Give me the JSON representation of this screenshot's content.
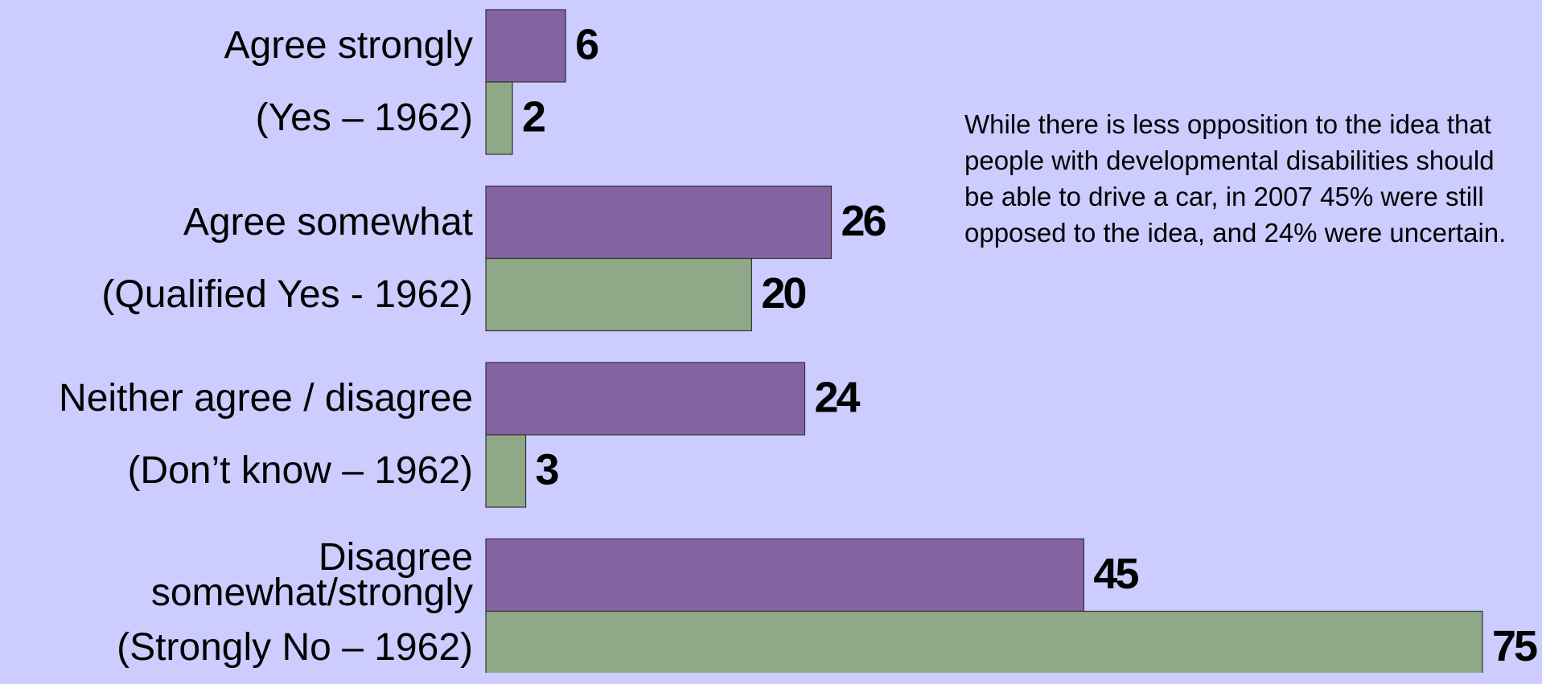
{
  "chart_data": {
    "type": "bar",
    "categories": [
      "Agree strongly",
      "Agree somewhat",
      "Neither agree / disagree",
      "Disagree somewhat/strongly"
    ],
    "series": [
      {
        "color": "#8464a0",
        "labels": [
          "Agree strongly",
          "Agree somewhat",
          "Neither agree / disagree",
          "Disagree somewhat/strongly"
        ],
        "values": [
          6,
          26,
          24,
          45
        ]
      },
      {
        "color": "#8fa888",
        "labels": [
          "(Yes – 1962)",
          "(Qualified Yes - 1962)",
          "(Don’t know – 1962)",
          "(Strongly No – 1962)"
        ],
        "values": [
          2,
          20,
          3,
          75
        ]
      }
    ],
    "annotation": "While there is less opposition to the idea that people with developmental disabilities should be able to drive a car, in 2007 45% were still opposed to the idea, and 24% were uncertain."
  }
}
